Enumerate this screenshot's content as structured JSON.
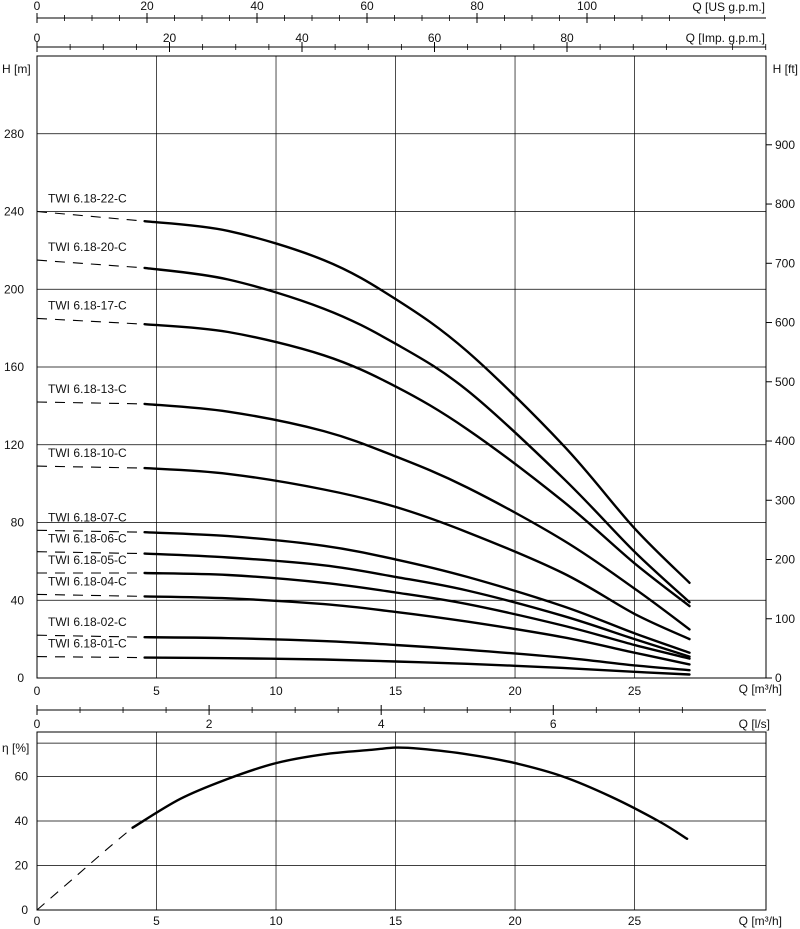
{
  "top_axes": {
    "usgpm_label": "Q [US g.p.m.]",
    "usgpm_ticks": [
      "0",
      "20",
      "40",
      "60",
      "80",
      "100"
    ],
    "impgpm_label": "Q [Imp. g.p.m.]",
    "impgpm_ticks": [
      "0",
      "20",
      "40",
      "60",
      "80"
    ]
  },
  "ls_axis": {
    "label": "Q [l/s]",
    "ticks": [
      "0",
      "2",
      "4",
      "6"
    ]
  },
  "colors": {
    "line": "#000000",
    "grid": "#000000"
  },
  "chart_data": [
    {
      "type": "line",
      "title": "",
      "xlabel": "Q [m³/h]",
      "ylabel": "H [m]",
      "ylabel_right": "H [ft]",
      "xlim": [
        0,
        30.5
      ],
      "ylim": [
        0,
        320
      ],
      "x_ticks": [
        0,
        5,
        10,
        15,
        20,
        25
      ],
      "y_ticks": [
        0,
        40,
        80,
        120,
        160,
        200,
        240,
        280
      ],
      "y_ticks_right": [
        0,
        100,
        200,
        300,
        400,
        500,
        600,
        700,
        800,
        900
      ],
      "grid": true,
      "series": [
        {
          "name": "TWI 6.18-22-C",
          "shutoff": 240,
          "x": [
            4.5,
            8,
            12,
            15,
            18,
            22,
            25,
            27.3
          ],
          "y": [
            235,
            230,
            215,
            195,
            168,
            120,
            77,
            49
          ]
        },
        {
          "name": "TWI 6.18-20-C",
          "shutoff": 215,
          "x": [
            4.5,
            8,
            12,
            15,
            18,
            22,
            25,
            27.3
          ],
          "y": [
            211,
            205,
            190,
            172,
            148,
            103,
            65,
            39
          ]
        },
        {
          "name": "TWI 6.18-17-C",
          "shutoff": 185,
          "x": [
            4.5,
            8,
            12,
            15,
            18,
            22,
            25,
            27.3
          ],
          "y": [
            182,
            178,
            166,
            150,
            128,
            91,
            59,
            37
          ]
        },
        {
          "name": "TWI 6.18-13-C",
          "shutoff": 142,
          "x": [
            4.5,
            8,
            12,
            15,
            18,
            22,
            25,
            27.3
          ],
          "y": [
            141,
            137,
            127,
            114,
            98,
            71,
            46,
            25
          ]
        },
        {
          "name": "TWI 6.18-10-C",
          "shutoff": 109,
          "x": [
            4.5,
            8,
            12,
            15,
            18,
            22,
            25,
            27.3
          ],
          "y": [
            108,
            105,
            97,
            88,
            75,
            54,
            33,
            20
          ]
        },
        {
          "name": "TWI 6.18-07-C",
          "shutoff": 76,
          "x": [
            4.5,
            8,
            12,
            15,
            18,
            22,
            25,
            27.3
          ],
          "y": [
            75,
            73,
            68,
            61,
            52,
            37,
            23,
            13
          ]
        },
        {
          "name": "TWI 6.18-06-C",
          "shutoff": 65,
          "x": [
            4.5,
            8,
            12,
            15,
            18,
            22,
            25,
            27.3
          ],
          "y": [
            64,
            62,
            58,
            52,
            45,
            32,
            20,
            11
          ]
        },
        {
          "name": "TWI 6.18-05-C",
          "shutoff": 54,
          "x": [
            4.5,
            8,
            12,
            15,
            18,
            22,
            25,
            27.3
          ],
          "y": [
            54,
            53,
            49,
            44,
            38,
            27,
            17,
            10
          ]
        },
        {
          "name": "TWI 6.18-04-C",
          "shutoff": 43,
          "x": [
            4.5,
            8,
            12,
            15,
            18,
            22,
            25,
            27.3
          ],
          "y": [
            42,
            41,
            38,
            34,
            29,
            21,
            13,
            7
          ]
        },
        {
          "name": "TWI 6.18-02-C",
          "shutoff": 22,
          "x": [
            4.5,
            8,
            12,
            15,
            18,
            22,
            25,
            27.3
          ],
          "y": [
            21,
            20.5,
            19,
            17,
            14.5,
            10.5,
            6.5,
            4
          ]
        },
        {
          "name": "TWI 6.18-01-C",
          "shutoff": 11,
          "x": [
            4.5,
            8,
            12,
            15,
            18,
            22,
            25,
            27.3
          ],
          "y": [
            10.5,
            10.2,
            9.5,
            8.5,
            7.3,
            5.2,
            3.2,
            1.8
          ]
        }
      ]
    },
    {
      "type": "line",
      "title": "",
      "xlabel": "Q [m³/h]",
      "ylabel": "η [%]",
      "xlim": [
        0,
        30.5
      ],
      "ylim": [
        0,
        80
      ],
      "x_ticks": [
        0,
        5,
        10,
        15,
        20,
        25
      ],
      "y_ticks": [
        0,
        20,
        40,
        60
      ],
      "grid": true,
      "dashed": {
        "x": [
          0,
          1.5,
          3,
          4
        ],
        "y": [
          0,
          14,
          28,
          37
        ]
      },
      "series": [
        {
          "x": [
            4,
            6,
            8,
            10,
            12,
            14,
            15,
            16,
            18,
            20,
            22,
            24,
            26,
            27.2
          ],
          "y": [
            37,
            50,
            59,
            66,
            70,
            72,
            73,
            72.5,
            70,
            66,
            60,
            51,
            40,
            32
          ]
        }
      ]
    }
  ]
}
